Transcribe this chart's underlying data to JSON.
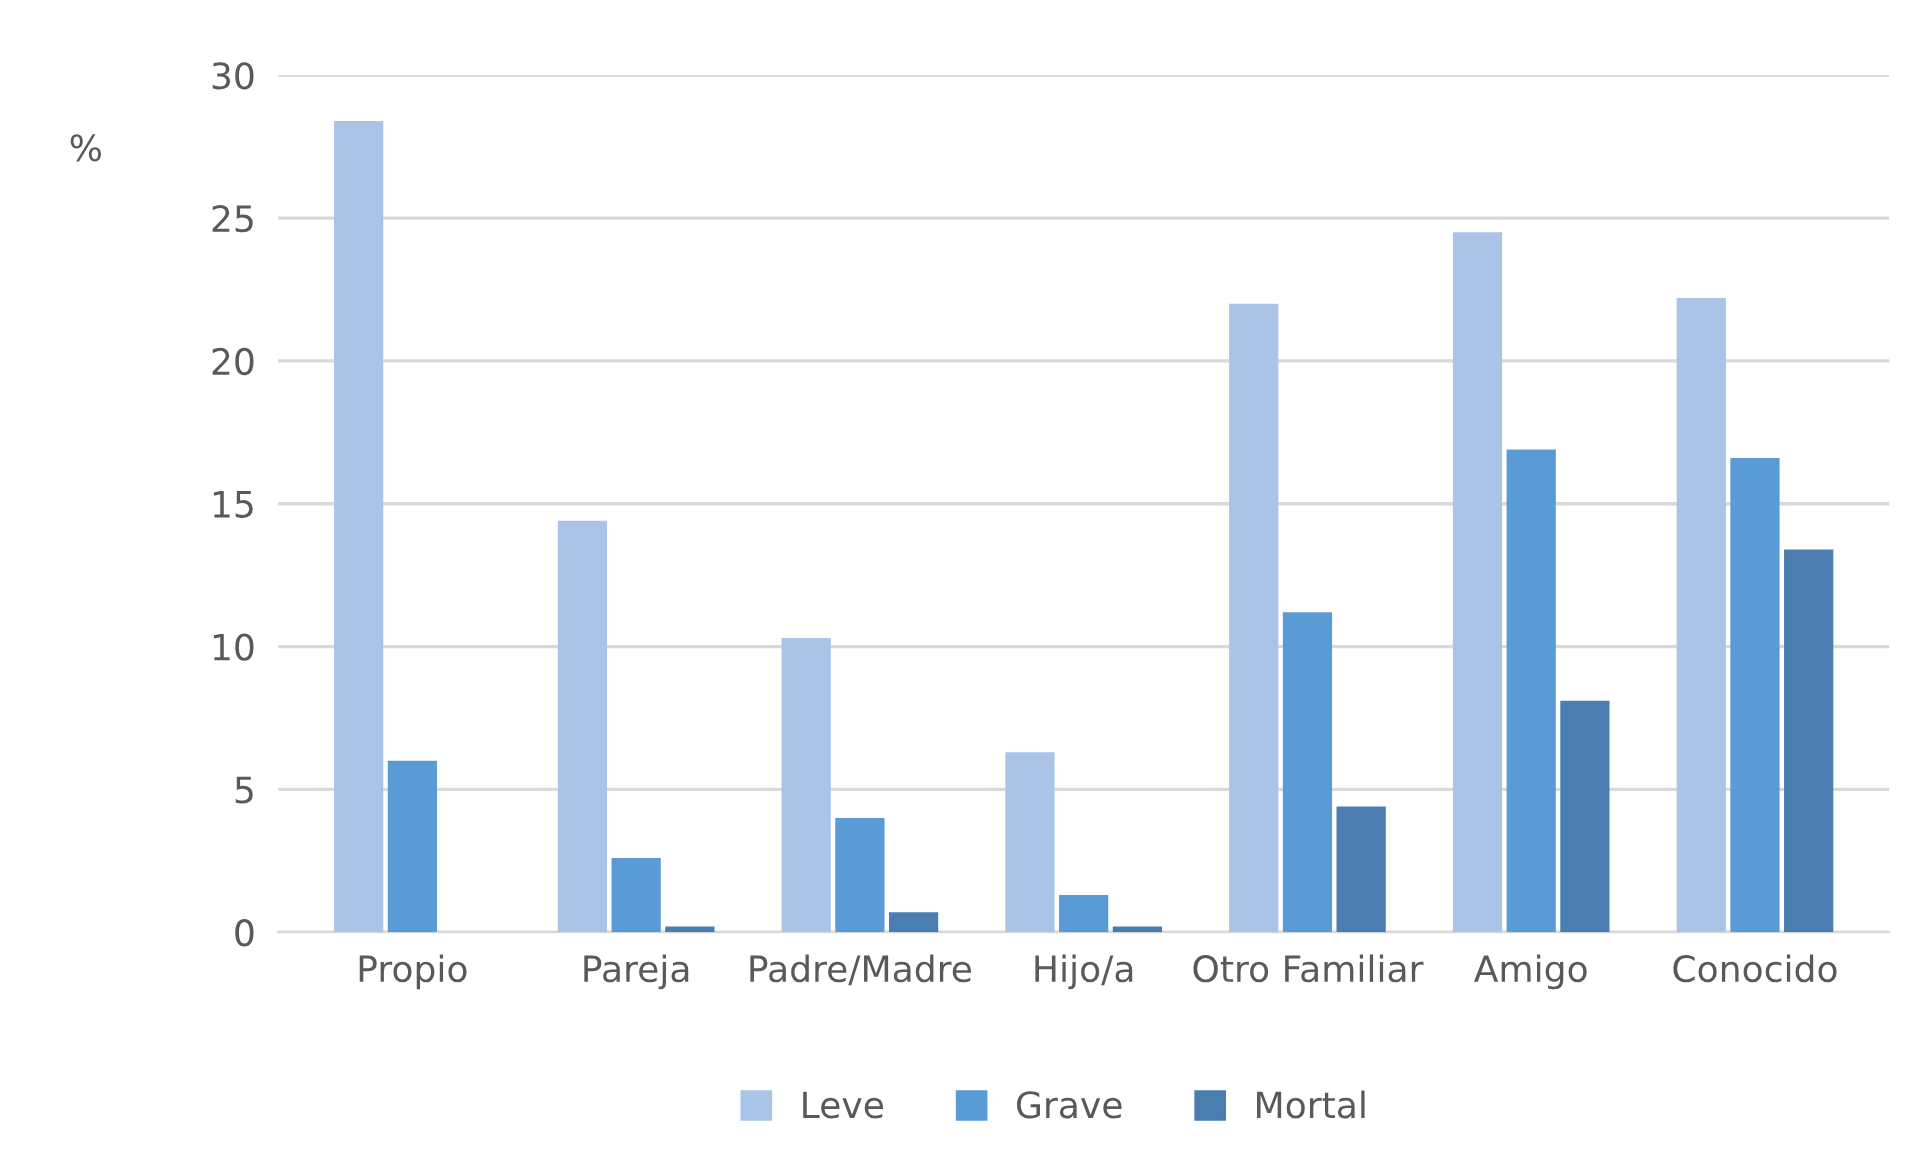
{
  "chart_data": {
    "type": "bar",
    "ylabel": "%",
    "categories": [
      "Propio",
      "Pareja",
      "Padre/Madre",
      "Hijo/a",
      "Otro Familiar",
      "Amigo",
      "Conocido"
    ],
    "series": [
      {
        "name": "Leve",
        "color": "#a9c4e6",
        "values": [
          28.4,
          14.4,
          10.3,
          6.3,
          22.0,
          24.5,
          22.2
        ]
      },
      {
        "name": "Grave",
        "color": "#5b9bd5",
        "values": [
          6.0,
          2.6,
          4.0,
          1.3,
          11.2,
          16.9,
          16.6
        ]
      },
      {
        "name": "Mortal",
        "color": "#4a7eb0",
        "values": [
          0,
          0.2,
          0.7,
          0.2,
          4.4,
          8.1,
          13.4
        ]
      }
    ],
    "ylim": [
      0,
      30
    ],
    "yticks": [
      0,
      5,
      10,
      15,
      20,
      25,
      30
    ],
    "grid": "y",
    "legend": "bottom"
  }
}
